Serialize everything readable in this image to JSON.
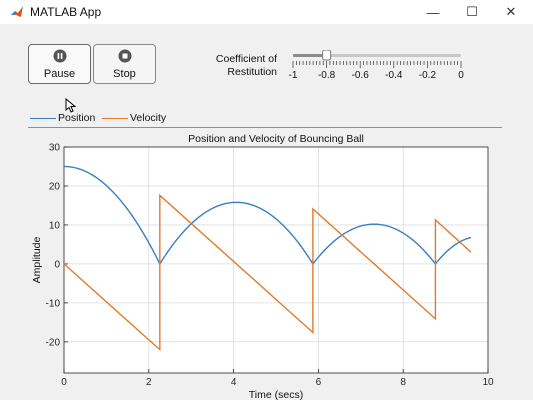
{
  "window": {
    "title": "MATLAB App",
    "controls": {
      "minimize": "—",
      "maximize": "☐",
      "close": "✕"
    }
  },
  "toolbar": {
    "pause_label": "Pause",
    "stop_label": "Stop"
  },
  "slider": {
    "label": "Coefficient of Restitution",
    "min": -1,
    "max": 0,
    "value": -0.8,
    "tick_labels": [
      "-1",
      "-0.8",
      "-0.6",
      "-0.4",
      "-0.2",
      "0"
    ]
  },
  "legend": {
    "position_label": "Position",
    "velocity_label": "Velocity"
  },
  "colors": {
    "position": "#3a7fc1",
    "velocity": "#e07a2e"
  },
  "chart_data": {
    "type": "line",
    "title": "Position and Velocity of Bouncing Ball",
    "xlabel": "Time (secs)",
    "ylabel": "Amplitude",
    "xlim": [
      0,
      10
    ],
    "ylim": [
      -28,
      30
    ],
    "xticks": [
      "0",
      "2",
      "4",
      "6",
      "8",
      "10"
    ],
    "yticks": [
      "-20",
      "-10",
      "0",
      "10",
      "20",
      "30"
    ],
    "grid": true,
    "series": [
      {
        "name": "Position",
        "segments": [
          {
            "type": "fall",
            "t0": 0,
            "t1": 2.26,
            "h0": 25
          },
          {
            "type": "arc",
            "t0": 2.26,
            "t1": 5.87,
            "peak": 15.8
          },
          {
            "type": "arc",
            "t0": 5.87,
            "t1": 8.76,
            "peak": 10.2
          },
          {
            "type": "rise",
            "t0": 8.76,
            "t1": 9.6,
            "end": 6.1
          }
        ]
      },
      {
        "name": "Velocity",
        "points": [
          [
            0,
            0
          ],
          [
            2.26,
            -22
          ],
          [
            2.26,
            17.6
          ],
          [
            5.87,
            -17.6
          ],
          [
            5.87,
            14.1
          ],
          [
            8.76,
            -14.1
          ],
          [
            8.76,
            11.3
          ],
          [
            9.6,
            3.0
          ]
        ]
      }
    ]
  }
}
